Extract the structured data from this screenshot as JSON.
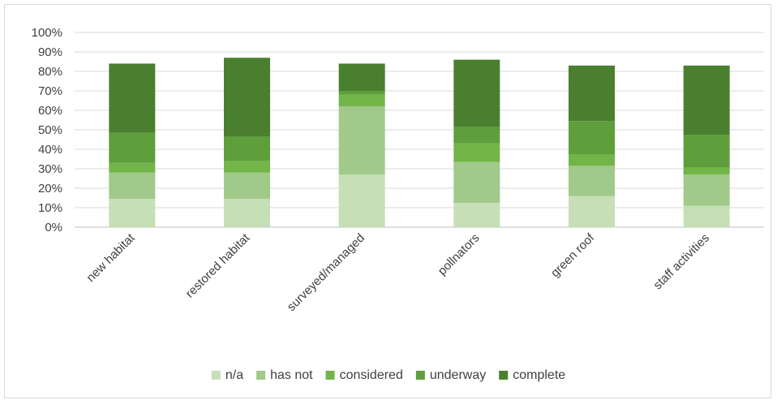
{
  "chart_data": {
    "type": "bar",
    "stacked": true,
    "title": "",
    "xlabel": "",
    "ylabel": "",
    "ylim": [
      0,
      100
    ],
    "ytick_step": 10,
    "ytick_labels": [
      "0%",
      "10%",
      "20%",
      "30%",
      "40%",
      "50%",
      "60%",
      "70%",
      "80%",
      "90%",
      "100%"
    ],
    "grid": true,
    "legend_position": "bottom",
    "categories": [
      "new habitat",
      "restored habitat",
      "surveyed/managed",
      "pollnators",
      "green roof",
      "staff activities"
    ],
    "series": [
      {
        "name": "n/a",
        "color": "#c6dfb6",
        "values": [
          14.5,
          14.5,
          27,
          12.5,
          16,
          11
        ]
      },
      {
        "name": "has not",
        "color": "#a1c98a",
        "values": [
          13.5,
          13.5,
          35,
          21,
          15.5,
          16
        ]
      },
      {
        "name": "considered",
        "color": "#72b548",
        "values": [
          5,
          6,
          6,
          9.5,
          6,
          3.5
        ]
      },
      {
        "name": "underway",
        "color": "#5e9e3b",
        "values": [
          15.5,
          12.5,
          2,
          8.5,
          17,
          17
        ]
      },
      {
        "name": "complete",
        "color": "#4a7f2f",
        "values": [
          35.5,
          40.5,
          14,
          34.5,
          28.5,
          35.5
        ]
      }
    ]
  }
}
